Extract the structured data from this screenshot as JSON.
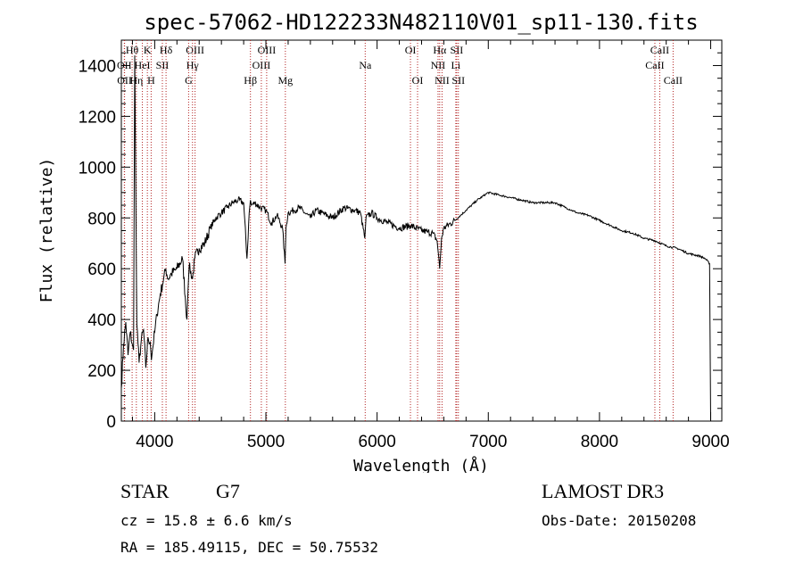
{
  "chart_data": {
    "type": "line",
    "title": "spec-57062-HD122233N482110V01_sp11-130.fits",
    "xlabel": "Wavelength (Å)",
    "ylabel": "Flux (relative)",
    "xlim": [
      3700,
      9100
    ],
    "ylim": [
      0,
      1500
    ],
    "xticks": [
      4000,
      5000,
      6000,
      7000,
      8000,
      9000
    ],
    "xtick_labels": [
      "4000",
      "5000",
      "6000",
      "7000",
      "8000",
      "9000"
    ],
    "yticks": [
      0,
      200,
      400,
      600,
      800,
      1000,
      1200,
      1400
    ],
    "ytick_labels": [
      "0",
      "200",
      "400",
      "600",
      "800",
      "1000",
      "1200",
      "1400"
    ],
    "grid": false,
    "series": [
      {
        "x": [
          3700,
          3720,
          3740,
          3760,
          3780,
          3800,
          3810,
          3820,
          3840,
          3860,
          3880,
          3900,
          3920,
          3940,
          3960,
          3970,
          3980,
          4000,
          4020,
          4050,
          4080,
          4100,
          4120,
          4150,
          4200,
          4250,
          4290,
          4300,
          4310,
          4340,
          4360,
          4400,
          4450,
          4500,
          4550,
          4600,
          4650,
          4700,
          4750,
          4800,
          4830,
          4850,
          4861,
          4870,
          4900,
          4950,
          5000,
          5050,
          5100,
          5150,
          5172,
          5180,
          5200,
          5250,
          5300,
          5350,
          5400,
          5450,
          5500,
          5600,
          5700,
          5800,
          5850,
          5890,
          5900,
          5950,
          6000,
          6100,
          6200,
          6300,
          6400,
          6450,
          6500,
          6540,
          6563,
          6580,
          6600,
          6700,
          6800,
          6900,
          7000,
          7100,
          7200,
          7300,
          7400,
          7500,
          7600,
          7700,
          7800,
          7900,
          8000,
          8100,
          8200,
          8300,
          8400,
          8500,
          8600,
          8700,
          8800,
          8900,
          8950,
          8990,
          9000
        ],
        "y": [
          130,
          300,
          390,
          260,
          350,
          300,
          280,
          1440,
          380,
          230,
          320,
          360,
          210,
          330,
          310,
          240,
          280,
          350,
          420,
          500,
          560,
          600,
          560,
          580,
          600,
          640,
          400,
          520,
          610,
          560,
          640,
          680,
          700,
          760,
          800,
          820,
          840,
          860,
          870,
          860,
          640,
          820,
          870,
          850,
          860,
          840,
          830,
          780,
          810,
          760,
          620,
          760,
          820,
          830,
          840,
          820,
          800,
          830,
          820,
          800,
          840,
          830,
          820,
          720,
          800,
          820,
          800,
          780,
          760,
          770,
          750,
          745,
          740,
          710,
          600,
          720,
          760,
          790,
          830,
          870,
          900,
          890,
          880,
          870,
          860,
          860,
          860,
          840,
          820,
          810,
          790,
          770,
          750,
          740,
          720,
          710,
          690,
          680,
          660,
          650,
          640,
          620,
          0
        ]
      }
    ],
    "line_markers": [
      {
        "label": "Hθ",
        "x": 3797,
        "row": 0
      },
      {
        "label": "OII",
        "x": 3727,
        "row": 1
      },
      {
        "label": "OII",
        "x": 3729,
        "row": 2
      },
      {
        "label": "Hη",
        "x": 3835,
        "row": 2
      },
      {
        "label": "HeI",
        "x": 3889,
        "row": 1
      },
      {
        "label": "K",
        "x": 3934,
        "row": 0
      },
      {
        "label": "H",
        "x": 3968,
        "row": 2
      },
      {
        "label": "SII",
        "x": 4069,
        "row": 1
      },
      {
        "label": "Hδ",
        "x": 4102,
        "row": 0
      },
      {
        "label": "OIII",
        "x": 4363,
        "row": 0
      },
      {
        "label": "Hγ",
        "x": 4340,
        "row": 1
      },
      {
        "label": "G",
        "x": 4305,
        "row": 2
      },
      {
        "label": "Hβ",
        "x": 4861,
        "row": 2
      },
      {
        "label": "OIII",
        "x": 5007,
        "row": 0
      },
      {
        "label": "OIII",
        "x": 4959,
        "row": 1
      },
      {
        "label": "Mg",
        "x": 5175,
        "row": 2
      },
      {
        "label": "Na",
        "x": 5893,
        "row": 1
      },
      {
        "label": "OI",
        "x": 6300,
        "row": 0
      },
      {
        "label": "OI",
        "x": 6364,
        "row": 2
      },
      {
        "label": "Hα",
        "x": 6563,
        "row": 0
      },
      {
        "label": "NII",
        "x": 6548,
        "row": 1
      },
      {
        "label": "NII",
        "x": 6584,
        "row": 2
      },
      {
        "label": "SII",
        "x": 6716,
        "row": 0
      },
      {
        "label": "Li",
        "x": 6708,
        "row": 1
      },
      {
        "label": "SII",
        "x": 6731,
        "row": 2
      },
      {
        "label": "CaII",
        "x": 8542,
        "row": 0
      },
      {
        "label": "CaII",
        "x": 8498,
        "row": 1
      },
      {
        "label": "CaII",
        "x": 8662,
        "row": 2
      }
    ]
  },
  "info": {
    "class_label": "STAR",
    "subclass": "G7",
    "survey": "LAMOST DR3",
    "cz": "cz = 15.8 ± 6.6 km/s",
    "obs_date": "Obs-Date: 20150208",
    "coords": "RA = 185.49115, DEC =  50.75532"
  },
  "colors": {
    "spectrum": "#000000",
    "marker_lines": "#b22222"
  }
}
